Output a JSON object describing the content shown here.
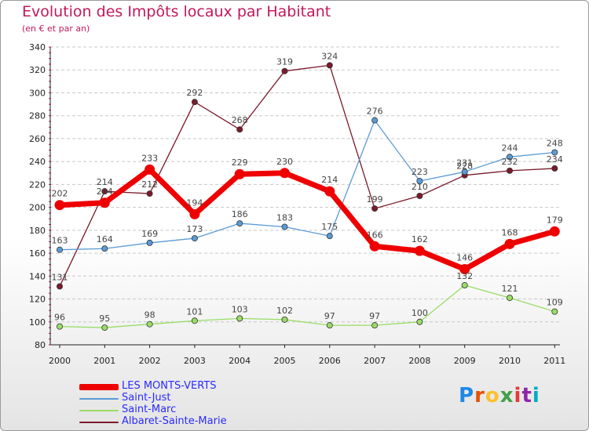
{
  "chart_data": {
    "type": "line",
    "title": "Evolution des Impôts locaux par Habitant",
    "subtitle": "(en € et par an)",
    "xlabel": "",
    "ylabel": "",
    "ylim": [
      80,
      340
    ],
    "ystep": 20,
    "grid": "horizontal dashed",
    "categories": [
      "2000",
      "2001",
      "2002",
      "2003",
      "2004",
      "2005",
      "2006",
      "2007",
      "2008",
      "2009",
      "2010",
      "2011"
    ],
    "series": [
      {
        "name": "Albaret-Sainte-Marie",
        "color": "#7a1a2a",
        "values": [
          131,
          214,
          212,
          292,
          268,
          319,
          324,
          199,
          210,
          228,
          232,
          234
        ]
      },
      {
        "name": "Saint-Just",
        "color": "#5b9bd5",
        "values": [
          163,
          164,
          169,
          173,
          186,
          183,
          175,
          276,
          223,
          231,
          244,
          248
        ]
      },
      {
        "name": "Saint-Marc",
        "color": "#99dd66",
        "values": [
          96,
          95,
          98,
          101,
          103,
          102,
          97,
          97,
          100,
          132,
          121,
          109
        ]
      },
      {
        "name": "LES MONTS-VERTS",
        "color": "#ee0000",
        "values": [
          202,
          204,
          233,
          194,
          229,
          230,
          214,
          166,
          162,
          146,
          168,
          179
        ]
      }
    ],
    "legend": [
      {
        "name": "LES MONTS-VERTS",
        "color": "#ee0000"
      },
      {
        "name": "Saint-Just",
        "color": "#5b9bd5"
      },
      {
        "name": "Saint-Marc",
        "color": "#99dd66"
      },
      {
        "name": "Albaret-Sainte-Marie",
        "color": "#7a1a2a"
      }
    ],
    "legend_position": "bottom-left"
  },
  "logo": {
    "letters": [
      "P",
      "r",
      "o",
      "x",
      "i",
      "t",
      "i"
    ],
    "colors": [
      "#1e88e5",
      "#e65100",
      "#fbc02d",
      "#43a047",
      "#e53935",
      "#8e24aa",
      "#00acc1"
    ]
  }
}
